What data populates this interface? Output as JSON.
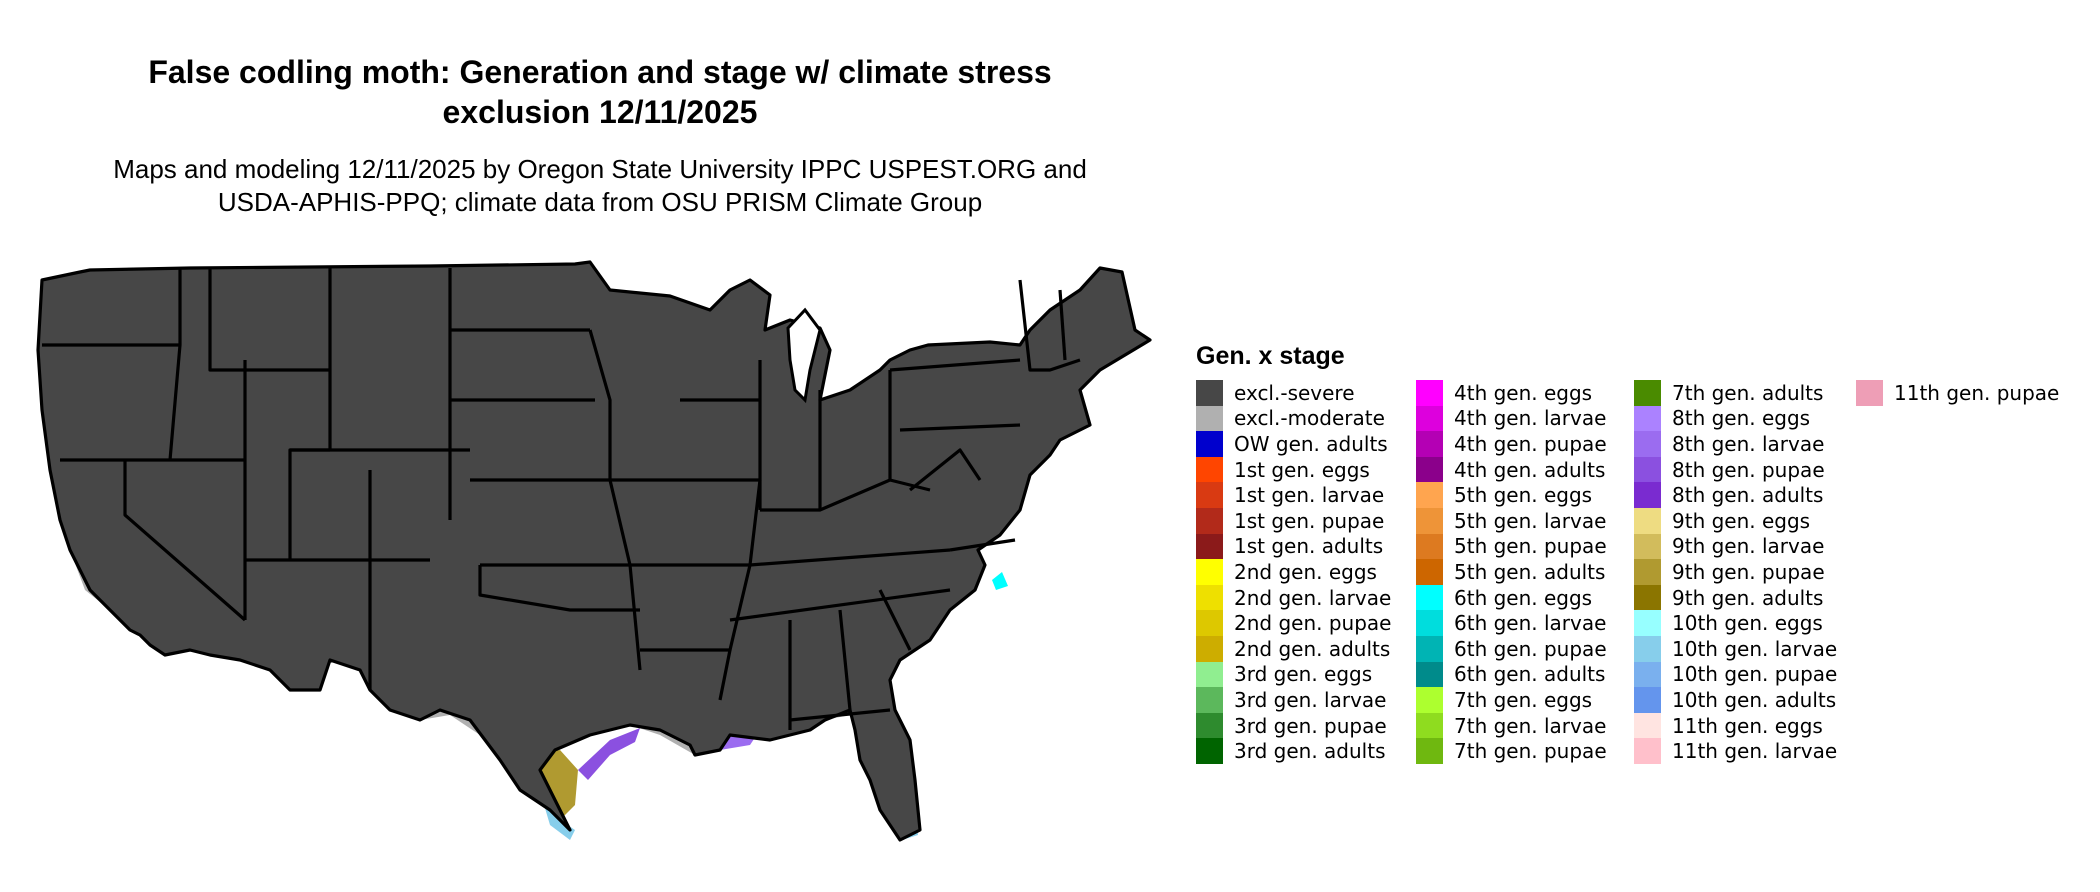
{
  "map": {
    "title_line1": "False codling moth: Generation and stage w/ climate stress",
    "title_line2": "exclusion 12/11/2025",
    "subtitle_line1": "Maps and modeling 12/11/2025 by Oregon State University IPPC USPEST.ORG and",
    "subtitle_line2": "USDA-APHIS-PPQ; climate data from OSU PRISM Climate Group",
    "base_color": "#474747",
    "moderate_color": "#b0b0b0",
    "border_color": "#000000"
  },
  "legend": {
    "title": "Gen. x stage",
    "columns": [
      [
        {
          "label": "excl.-severe",
          "color": "#474747"
        },
        {
          "label": "excl.-moderate",
          "color": "#b0b0b0"
        },
        {
          "label": "OW gen. adults",
          "color": "#0000cd"
        },
        {
          "label": "1st gen. eggs",
          "color": "#ff4500"
        },
        {
          "label": "1st gen. larvae",
          "color": "#d93a12"
        },
        {
          "label": "1st gen. pupae",
          "color": "#b22a1a"
        },
        {
          "label": "1st gen. adults",
          "color": "#8b1a1a"
        },
        {
          "label": "2nd gen. eggs",
          "color": "#ffff00"
        },
        {
          "label": "2nd gen. larvae",
          "color": "#eee000"
        },
        {
          "label": "2nd gen. pupae",
          "color": "#ddc800"
        },
        {
          "label": "2nd gen. adults",
          "color": "#cdad00"
        },
        {
          "label": "3rd gen. eggs",
          "color": "#90ee90"
        },
        {
          "label": "3rd gen. larvae",
          "color": "#5cb85c"
        },
        {
          "label": "3rd gen. pupae",
          "color": "#2e8b2e"
        },
        {
          "label": "3rd gen. adults",
          "color": "#006400"
        }
      ],
      [
        {
          "label": "4th gen. eggs",
          "color": "#ff00ff"
        },
        {
          "label": "4th gen. larvae",
          "color": "#dd00dd"
        },
        {
          "label": "4th gen. pupae",
          "color": "#b400b4"
        },
        {
          "label": "4th gen. adults",
          "color": "#8b008b"
        },
        {
          "label": "5th gen. eggs",
          "color": "#ffa54f"
        },
        {
          "label": "5th gen. larvae",
          "color": "#ee9438"
        },
        {
          "label": "5th gen. pupae",
          "color": "#dd7a20"
        },
        {
          "label": "5th gen. adults",
          "color": "#cd6600"
        },
        {
          "label": "6th gen. eggs",
          "color": "#00ffff"
        },
        {
          "label": "6th gen. larvae",
          "color": "#00dddd"
        },
        {
          "label": "6th gen. pupae",
          "color": "#00b4b4"
        },
        {
          "label": "6th gen. adults",
          "color": "#008b8b"
        },
        {
          "label": "7th gen. eggs",
          "color": "#adff2f"
        },
        {
          "label": "7th gen. larvae",
          "color": "#8fdc1f"
        },
        {
          "label": "7th gen. pupae",
          "color": "#6fb810"
        }
      ],
      [
        {
          "label": "7th gen. adults",
          "color": "#4a8b00"
        },
        {
          "label": "8th gen. eggs",
          "color": "#ab82ff"
        },
        {
          "label": "8th gen. larvae",
          "color": "#9b6cf0"
        },
        {
          "label": "8th gen. pupae",
          "color": "#8b50e0"
        },
        {
          "label": "8th gen. adults",
          "color": "#7a2bd0"
        },
        {
          "label": "9th gen. eggs",
          "color": "#eedc82"
        },
        {
          "label": "9th gen. larvae",
          "color": "#d2bc5c"
        },
        {
          "label": "9th gen. pupae",
          "color": "#b09a30"
        },
        {
          "label": "9th gen. adults",
          "color": "#8b7500"
        },
        {
          "label": "10th gen. eggs",
          "color": "#97ffff"
        },
        {
          "label": "10th gen. larvae",
          "color": "#87ceeb"
        },
        {
          "label": "10th gen. pupae",
          "color": "#7ab0ee"
        },
        {
          "label": "10th gen. adults",
          "color": "#6495ed"
        },
        {
          "label": "11th gen. eggs",
          "color": "#ffe4e1"
        },
        {
          "label": "11th gen. larvae",
          "color": "#ffc0cb"
        }
      ],
      [
        {
          "label": "11th gen. pupae",
          "color": "#ee9eb6"
        }
      ]
    ]
  }
}
